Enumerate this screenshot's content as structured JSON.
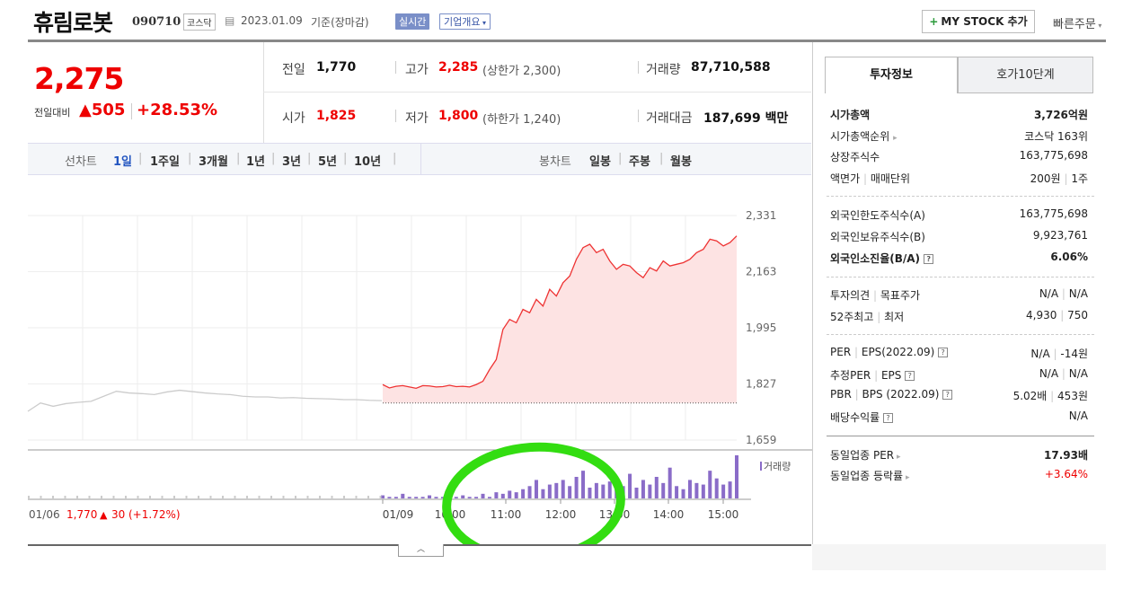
{
  "header": {
    "name": "휴림로봇",
    "code": "090710",
    "market": "코스닥",
    "date": "2023.01.09",
    "basis": "기준(장마감)",
    "realtime": "실시간",
    "company_info": "기업개요",
    "mystock": "MY STOCK 추가",
    "quick_order": "빠른주문"
  },
  "price": {
    "current": "2,275",
    "change_label": "전일대비",
    "change": "505",
    "change_pct": "+28.53%"
  },
  "summary": {
    "prev_label": "전일",
    "prev": "1,770",
    "high_label": "고가",
    "high": "2,285",
    "upper_label": "(상한가",
    "upper": "2,300)",
    "volume_label": "거래량",
    "volume": "87,710,588",
    "open_label": "시가",
    "open": "1,825",
    "low_label": "저가",
    "low": "1,800",
    "lower_label": "(하한가",
    "lower": "1,240)",
    "amount_label": "거래대금",
    "amount": "187,699",
    "amount_unit": "백만"
  },
  "periods": {
    "line_label": "선차트",
    "line": [
      "1일",
      "1주일",
      "3개월",
      "1년",
      "3년",
      "5년",
      "10년"
    ],
    "active": "1일",
    "candle_label": "봉차트",
    "candle": [
      "일봉",
      "주봉",
      "월봉"
    ]
  },
  "chart_data": {
    "type": "line",
    "y_ticks": [
      "2,331",
      "2,163",
      "1,995",
      "1,827",
      "1,659"
    ],
    "ylim": [
      1659,
      2331
    ],
    "x_ticks": [
      "01/09",
      "10:00",
      "11:00",
      "12:00",
      "13:00",
      "14:00",
      "15:00"
    ],
    "volume_label": "거래량",
    "prev_day_note": {
      "date": "01/06",
      "price": "1,770",
      "change": "30",
      "pct": "(+1.72%)"
    },
    "prev_close": 1770,
    "series": [
      {
        "x": [
          "01/06",
          "",
          "",
          "",
          "",
          "",
          "",
          "",
          "",
          "",
          "",
          "",
          "",
          "",
          "",
          "",
          "",
          "",
          "",
          "",
          "",
          "",
          "",
          "",
          "",
          "",
          "",
          "",
          ""
        ],
        "values": [
          1745,
          1770,
          1760,
          1768,
          1772,
          1775,
          1790,
          1805,
          1800,
          1798,
          1795,
          1803,
          1808,
          1804,
          1800,
          1797,
          1795,
          1790,
          1788,
          1788,
          1785,
          1786,
          1784,
          1783,
          1782,
          1780,
          1780,
          1778,
          1777
        ]
      },
      {
        "x": [
          "01/09",
          "",
          "",
          "",
          "",
          "",
          "",
          "10:00",
          "",
          "",
          "",
          "",
          "",
          "",
          "",
          "",
          "11:00",
          "",
          "",
          "",
          "",
          "",
          "",
          "",
          "",
          "12:00",
          "",
          "",
          "",
          "",
          "",
          "",
          "",
          "",
          "13:00",
          "",
          "",
          "",
          "",
          "",
          "",
          "",
          "",
          "14:00",
          "",
          "",
          "",
          "",
          "",
          "",
          "",
          "",
          "15:00",
          ""
        ],
        "values": [
          1825,
          1815,
          1820,
          1822,
          1818,
          1814,
          1822,
          1821,
          1818,
          1819,
          1823,
          1819,
          1820,
          1818,
          1825,
          1835,
          1870,
          1900,
          1990,
          2020,
          2010,
          2050,
          2040,
          2080,
          2060,
          2110,
          2090,
          2130,
          2150,
          2200,
          2235,
          2245,
          2220,
          2230,
          2195,
          2170,
          2185,
          2180,
          2160,
          2145,
          2175,
          2165,
          2195,
          2180,
          2185,
          2190,
          2200,
          2220,
          2230,
          2260,
          2255,
          2240,
          2250,
          2270
        ]
      }
    ],
    "volume": [
      2,
      1,
      1,
      3,
      1,
      1,
      1,
      2,
      1,
      1,
      1,
      1,
      2,
      1,
      1,
      3,
      1,
      4,
      3,
      5,
      4,
      6,
      8,
      12,
      6,
      9,
      10,
      12,
      8,
      14,
      18,
      7,
      10,
      9,
      11,
      6,
      8,
      16,
      7,
      12,
      9,
      14,
      10,
      20,
      8,
      6,
      12,
      10,
      9,
      18,
      13,
      9,
      11,
      28
    ]
  },
  "tabs": {
    "invest": "투자정보",
    "hoga": "호가10단계"
  },
  "invest": {
    "market_cap_label": "시가총액",
    "market_cap": "3,726억원",
    "rank_label": "시가총액순위",
    "rank": "코스닥 163위",
    "shares_label": "상장주식수",
    "shares": "163,775,698",
    "par_label": "액면가",
    "unit_label": "매매단위",
    "par": "200원",
    "unit": "1주",
    "foreign_limit_label": "외국인한도주식수(A)",
    "foreign_limit": "163,775,698",
    "foreign_hold_label": "외국인보유주식수(B)",
    "foreign_hold": "9,923,761",
    "foreign_ratio_label": "외국인소진율(B/A)",
    "foreign_ratio": "6.06%",
    "opinion_label": "투자의견",
    "target_label": "목표주가",
    "opinion": "N/A",
    "target": "N/A",
    "w52_high_label": "52주최고",
    "w52_low_label": "최저",
    "w52_high": "4,930",
    "w52_low": "750",
    "per_label": "PER",
    "eps_label": "EPS(2022.09)",
    "per": "N/A",
    "eps": "-14원",
    "est_per_label": "추정PER",
    "est_eps_label": "EPS",
    "est_per": "N/A",
    "est_eps": "N/A",
    "pbr_label": "PBR",
    "bps_label": "BPS (2022.09)",
    "pbr": "5.02배",
    "bps": "453원",
    "div_label": "배당수익률",
    "div": "N/A",
    "sector_per_label": "동일업종 PER",
    "sector_per": "17.93배",
    "sector_rate_label": "동일업종 등락률",
    "sector_rate": "+3.64%"
  },
  "colors": {
    "up": "#e00000",
    "annotation": "#33dd11",
    "volume": "#8a6cc8",
    "active": "#2255c0"
  }
}
